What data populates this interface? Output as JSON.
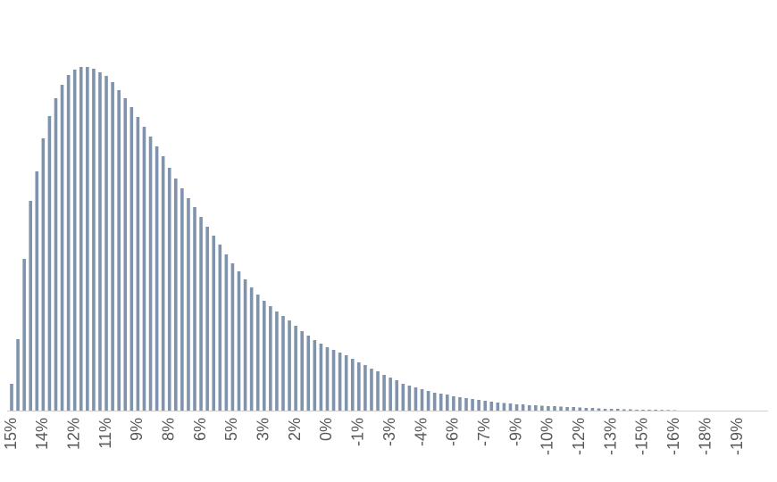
{
  "chart_data": {
    "type": "bar",
    "color": "#8093ad",
    "categories": [
      "15%",
      null,
      null,
      null,
      null,
      "14%",
      null,
      null,
      null,
      null,
      "12%",
      null,
      null,
      null,
      null,
      "11%",
      null,
      null,
      null,
      null,
      "9%",
      null,
      null,
      null,
      null,
      "8%",
      null,
      null,
      null,
      null,
      "6%",
      null,
      null,
      null,
      null,
      "5%",
      null,
      null,
      null,
      null,
      "3%",
      null,
      null,
      null,
      null,
      "2%",
      null,
      null,
      null,
      null,
      "0%",
      null,
      null,
      null,
      null,
      "-1%",
      null,
      null,
      null,
      null,
      "-3%",
      null,
      null,
      null,
      null,
      "-4%",
      null,
      null,
      null,
      null,
      "-6%",
      null,
      null,
      null,
      null,
      "-7%",
      null,
      null,
      null,
      null,
      "-9%",
      null,
      null,
      null,
      null,
      "-10%",
      null,
      null,
      null,
      null,
      "-12%",
      null,
      null,
      null,
      null,
      "-13%",
      null,
      null,
      null,
      null,
      "-15%",
      null,
      null,
      null,
      null,
      "-16%",
      null,
      null,
      null,
      null,
      "-18%",
      null,
      null,
      null,
      null,
      "-19%",
      null,
      null,
      null,
      null
    ],
    "values": [
      30,
      80,
      170,
      235,
      268,
      305,
      330,
      350,
      365,
      376,
      382,
      385,
      385,
      383,
      379,
      375,
      368,
      359,
      350,
      340,
      329,
      318,
      307,
      296,
      285,
      272,
      260,
      249,
      238,
      228,
      217,
      206,
      196,
      186,
      175,
      165,
      156,
      147,
      138,
      130,
      123,
      117,
      111,
      106,
      101,
      95,
      89,
      84,
      79,
      75,
      71,
      68,
      65,
      62,
      58,
      54,
      51,
      47,
      44,
      40,
      37,
      34,
      30,
      28,
      26,
      24,
      22,
      20,
      19,
      18,
      16,
      15,
      14,
      13,
      12,
      11,
      10,
      9,
      8.5,
      8,
      7,
      7,
      6,
      6,
      5.5,
      5,
      5,
      4.5,
      4,
      4,
      3.5,
      3,
      3,
      2.5,
      2,
      2,
      2,
      1.5,
      1.5,
      1,
      1,
      1,
      1,
      0.8,
      0.7,
      0.5,
      0,
      0,
      0,
      0,
      0,
      0,
      0,
      0,
      0,
      0,
      0,
      0,
      0,
      0
    ],
    "ylim": [
      0,
      400
    ]
  }
}
